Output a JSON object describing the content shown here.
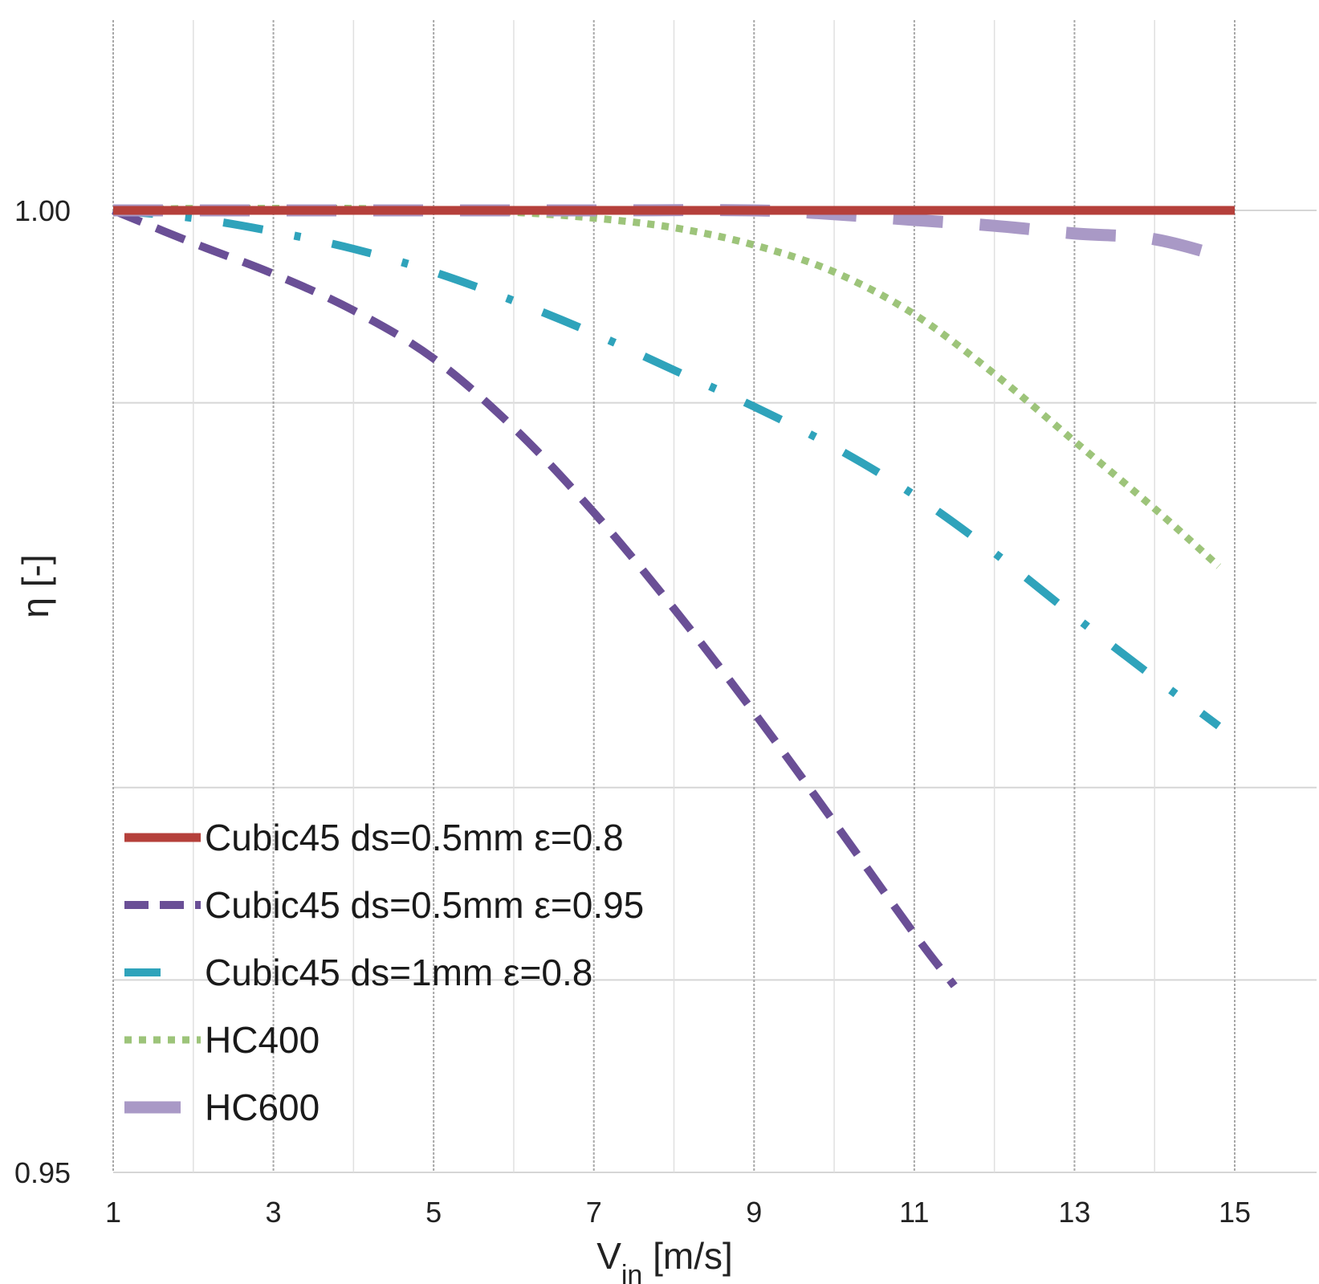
{
  "chart_data": {
    "type": "line",
    "title": "",
    "xlabel_main": "V",
    "xlabel_sub": "in",
    "xlabel_unit": " [m/s]",
    "ylabel": "η [-]",
    "xlim": [
      1,
      15.8
    ],
    "ylim": [
      0.95,
      1.011
    ],
    "x_ticks": [
      1,
      3,
      5,
      7,
      9,
      11,
      13,
      15
    ],
    "y_ticks": [
      {
        "value": 1.0,
        "label": "1.00"
      },
      {
        "value": 0.95,
        "label": "0.95"
      }
    ],
    "y_gridlines": [
      0.95,
      0.96,
      0.97,
      0.99,
      1.0
    ],
    "legend_position": "bottom-left",
    "series": [
      {
        "name": "Cubic45 ds=0.5mm ε=0.8",
        "color": "#b5403b",
        "style": "solid",
        "x": [
          1,
          3,
          5,
          7,
          9,
          11,
          13,
          15
        ],
        "y": [
          1.0,
          1.0,
          1.0,
          1.0,
          1.0,
          1.0,
          1.0,
          1.0
        ]
      },
      {
        "name": "Cubic45 ds=0.5mm ε=0.95",
        "color": "#6a4f96",
        "style": "dashed",
        "x": [
          1,
          2,
          3,
          4,
          5,
          6,
          7,
          8,
          9,
          10,
          11,
          11.5
        ],
        "y": [
          1.0,
          0.9983,
          0.9967,
          0.9948,
          0.9923,
          0.9887,
          0.9843,
          0.9793,
          0.9739,
          0.9682,
          0.9624,
          0.9597
        ]
      },
      {
        "name": "Cubic45 ds=1mm ε=0.8",
        "color": "#2fa3bb",
        "style": "dashdot",
        "x": [
          1,
          2,
          3,
          4,
          5,
          6,
          7,
          8,
          9,
          10,
          11,
          12,
          13,
          14,
          14.8
        ],
        "y": [
          1.0,
          0.9996,
          0.9989,
          0.998,
          0.9968,
          0.9953,
          0.9936,
          0.9917,
          0.9898,
          0.9877,
          0.9852,
          0.9822,
          0.9789,
          0.9757,
          0.9732
        ]
      },
      {
        "name": "HC400",
        "color": "#9dc47a",
        "style": "dotted",
        "x": [
          1,
          2,
          3,
          4,
          5,
          6,
          7,
          8,
          9,
          10,
          11,
          12,
          13,
          14,
          14.8
        ],
        "y": [
          1.0,
          1.0001,
          1.0001,
          1.0001,
          1.0,
          0.9999,
          0.9996,
          0.9991,
          0.9982,
          0.9968,
          0.9946,
          0.9915,
          0.988,
          0.9845,
          0.9815
        ]
      },
      {
        "name": "HC600",
        "color": "#a999c6",
        "style": "longdash",
        "x": [
          1,
          3,
          5,
          7,
          9,
          10,
          11,
          12,
          13,
          14,
          15
        ],
        "y": [
          1.0,
          1.0,
          1.0,
          1.0,
          1.0,
          0.9998,
          0.9995,
          0.9992,
          0.9988,
          0.9985,
          0.9974
        ]
      }
    ]
  }
}
